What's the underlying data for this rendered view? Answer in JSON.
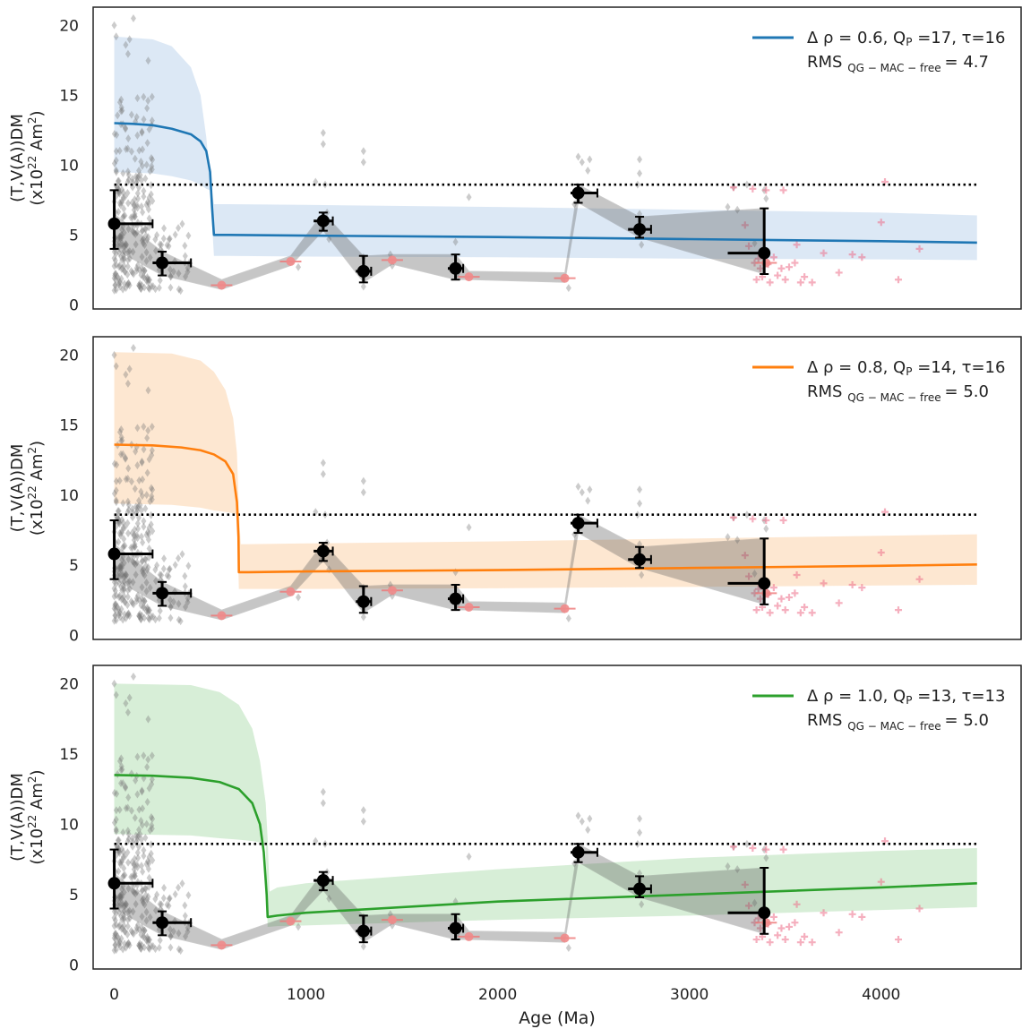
{
  "figure": {
    "y_label_line1": "(T,V(A))DM",
    "y_label_line2_main": "(x10",
    "y_label_line2_sup": "22",
    "y_label_line2_tail": " Am",
    "y_label_line2_sup2": "2",
    "y_label_line2_end": ")",
    "x_label": "Age (Ma)",
    "x_ticks": [
      "0",
      "1000",
      "2000",
      "3000",
      "4000"
    ],
    "y_ticks": [
      "0",
      "5",
      "10",
      "15",
      "20"
    ]
  },
  "chart_data": [
    {
      "type": "line",
      "panel": "top",
      "legend": {
        "line1": "Δ ρ = 0.6, Q",
        "line1_sub": "P",
        "line1_tail": " =17,  τ=16",
        "line2": "RMS",
        "line2_sub": "QG − MAC  − free",
        "line2_tail": "= 4.7",
        "placement": "top-right"
      },
      "color": "#1f77b4",
      "band_color": "#dae7f4",
      "xlim": [
        -110,
        4730
      ],
      "ylim": [
        -0.3,
        21.3
      ],
      "reference_line": 8.6,
      "step_age": 520,
      "model": {
        "x": [
          0,
          100,
          200,
          300,
          400,
          450,
          480,
          500,
          510,
          520,
          600,
          1000,
          2000,
          3000,
          4000,
          4500
        ],
        "y": [
          13.0,
          12.95,
          12.85,
          12.6,
          12.2,
          11.7,
          11.0,
          9.5,
          7.0,
          5.0,
          5.0,
          4.95,
          4.85,
          4.7,
          4.55,
          4.45
        ]
      },
      "band": {
        "x": [
          0,
          200,
          300,
          400,
          450,
          480,
          500,
          520,
          540,
          600,
          1000,
          2000,
          3000,
          4000,
          4500
        ],
        "upper": [
          19.2,
          19.0,
          18.5,
          17.0,
          15.0,
          12.0,
          9.0,
          7.2,
          7.2,
          7.2,
          7.15,
          7.0,
          6.8,
          6.6,
          6.4
        ],
        "lower": [
          9.5,
          9.4,
          9.2,
          8.9,
          8.6,
          8.3,
          8.2,
          3.5,
          3.5,
          3.5,
          3.45,
          3.4,
          3.3,
          3.25,
          3.2
        ]
      }
    },
    {
      "type": "line",
      "panel": "middle",
      "legend": {
        "line1": "Δ ρ = 0.8, Q",
        "line1_sub": "P",
        "line1_tail": " =14,  τ=16",
        "line2": "RMS",
        "line2_sub": "QG − MAC  − free",
        "line2_tail": "= 5.0",
        "placement": "top-right"
      },
      "color": "#ff7f0e",
      "band_color": "#fde6cf",
      "xlim": [
        -110,
        4730
      ],
      "ylim": [
        -0.3,
        21.3
      ],
      "reference_line": 8.6,
      "step_age": 650,
      "model": {
        "x": [
          0,
          200,
          350,
          450,
          520,
          580,
          620,
          640,
          648,
          650,
          700,
          1000,
          2000,
          3000,
          4000,
          4500
        ],
        "y": [
          13.6,
          13.55,
          13.4,
          13.2,
          12.9,
          12.4,
          11.5,
          9.5,
          7.0,
          4.5,
          4.5,
          4.55,
          4.65,
          4.8,
          4.95,
          5.05
        ]
      },
      "band": {
        "x": [
          0,
          300,
          450,
          520,
          580,
          620,
          640,
          650,
          660,
          700,
          1000,
          2000,
          3000,
          4000,
          4500
        ],
        "upper": [
          20.2,
          20.1,
          19.6,
          18.8,
          17.5,
          15.5,
          13.0,
          9.0,
          6.5,
          6.5,
          6.55,
          6.7,
          6.9,
          7.1,
          7.2
        ],
        "lower": [
          9.4,
          9.3,
          9.1,
          8.9,
          8.8,
          8.7,
          8.6,
          3.3,
          3.3,
          3.3,
          3.3,
          3.35,
          3.45,
          3.55,
          3.6
        ]
      }
    },
    {
      "type": "line",
      "panel": "bottom",
      "legend": {
        "line1": "Δ ρ = 1.0, Q",
        "line1_sub": "P",
        "line1_tail": " =13,  τ=13",
        "line2": "RMS",
        "line2_sub": "QG − MAC  − free",
        "line2_tail": "= 5.0",
        "placement": "top-right"
      },
      "color": "#2ca02c",
      "band_color": "#d5edd5",
      "xlim": [
        -110,
        4730
      ],
      "ylim": [
        -0.3,
        21.3
      ],
      "reference_line": 8.6,
      "step_age": 800,
      "model": {
        "x": [
          0,
          200,
          400,
          550,
          650,
          720,
          760,
          780,
          795,
          800,
          850,
          1000,
          2000,
          3000,
          4000,
          4500
        ],
        "y": [
          13.5,
          13.45,
          13.3,
          13.0,
          12.5,
          11.5,
          10.0,
          8.0,
          5.0,
          3.4,
          3.5,
          3.7,
          4.5,
          5.0,
          5.5,
          5.8
        ]
      },
      "band": {
        "x": [
          0,
          400,
          550,
          650,
          720,
          760,
          790,
          800,
          810,
          850,
          1000,
          2000,
          3000,
          4000,
          4500
        ],
        "upper": [
          20.0,
          19.9,
          19.4,
          18.5,
          16.8,
          14.5,
          11.5,
          9.0,
          5.2,
          5.5,
          5.8,
          6.8,
          7.6,
          8.1,
          8.3
        ],
        "lower": [
          9.3,
          9.2,
          9.0,
          8.9,
          8.8,
          8.7,
          8.6,
          2.7,
          2.7,
          2.75,
          2.8,
          3.2,
          3.5,
          3.9,
          4.1
        ]
      }
    }
  ],
  "observations": {
    "binned_means": [
      {
        "x": 0,
        "y": 5.8,
        "xerr": [
          0,
          200
        ],
        "yerr": [
          4.0,
          8.2
        ]
      },
      {
        "x": 250,
        "y": 3.0,
        "xerr": [
          200,
          400
        ],
        "yerr": [
          2.1,
          3.8
        ]
      },
      {
        "x": 1090,
        "y": 6.0,
        "xerr": [
          1040,
          1140
        ],
        "yerr": [
          5.3,
          6.6
        ]
      },
      {
        "x": 1300,
        "y": 2.4,
        "xerr": [
          1260,
          1340
        ],
        "yerr": [
          1.6,
          3.5
        ]
      },
      {
        "x": 1780,
        "y": 2.6,
        "xerr": [
          1740,
          1820
        ],
        "yerr": [
          1.8,
          3.6
        ]
      },
      {
        "x": 2420,
        "y": 8.0,
        "xerr": [
          2380,
          2520
        ],
        "yerr": [
          7.3,
          8.6
        ]
      },
      {
        "x": 2740,
        "y": 5.4,
        "xerr": [
          2680,
          2800
        ],
        "yerr": [
          4.8,
          6.3
        ]
      },
      {
        "x": 3390,
        "y": 3.7,
        "xerr": [
          3200,
          3390
        ],
        "yerr": [
          2.2,
          6.9
        ]
      }
    ],
    "red_points": [
      {
        "x": 560,
        "y": 1.4
      },
      {
        "x": 920,
        "y": 3.1
      },
      {
        "x": 1450,
        "y": 3.2
      },
      {
        "x": 1850,
        "y": 2.0
      },
      {
        "x": 2350,
        "y": 1.9
      },
      {
        "x": 3400,
        "y": 3.0
      }
    ],
    "grey_envelope": {
      "x": [
        0,
        250,
        560,
        920,
        1090,
        1300,
        1450,
        1780,
        1850,
        2350,
        2420,
        2740,
        3390
      ],
      "upper": [
        6.5,
        3.8,
        1.8,
        3.5,
        6.6,
        3.5,
        3.6,
        3.6,
        2.4,
        2.3,
        8.6,
        6.3,
        6.9
      ],
      "lower": [
        4.0,
        2.1,
        1.1,
        2.8,
        5.3,
        1.6,
        2.9,
        1.8,
        1.8,
        1.6,
        7.3,
        4.8,
        2.2
      ]
    }
  }
}
